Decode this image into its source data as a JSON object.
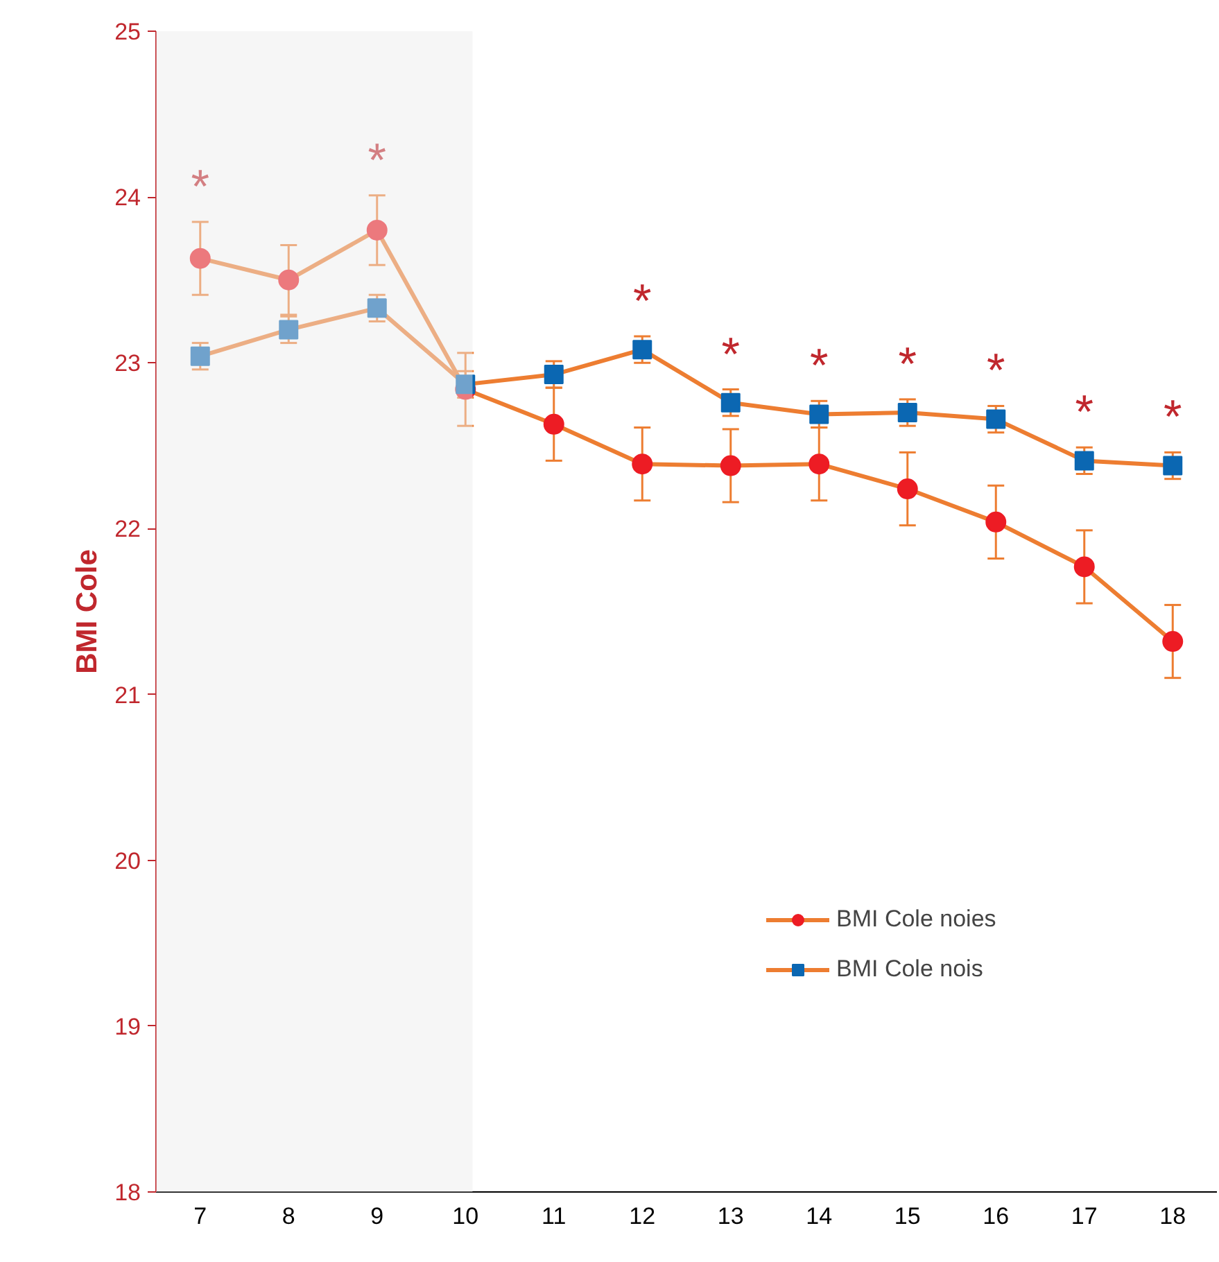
{
  "chart_data": {
    "type": "line",
    "ylabel": "BMI Cole",
    "categories": [
      "7",
      "8",
      "9",
      "10",
      "11",
      "12",
      "13",
      "14",
      "15",
      "16",
      "17",
      "18"
    ],
    "ylim": [
      18,
      25
    ],
    "yticks": [
      18,
      19,
      20,
      21,
      22,
      23,
      24,
      25
    ],
    "grid": false,
    "legend": "bottom right",
    "line_style": "solid",
    "series": [
      {
        "name": "BMI Cole noies",
        "color": "#ed7d31",
        "marker": "circle",
        "colors": [
          "#ed1c24",
          "#ed1c24",
          "#ed1c24",
          "#ed1c24",
          "#ed1c24",
          "#ed1c24",
          "#ed1c24",
          "#ed1c24",
          "#ed1c24",
          "#ed1c24",
          "#ed1c24",
          "#ed1c24"
        ],
        "values": [
          23.63,
          23.5,
          23.8,
          22.84,
          22.63,
          22.39,
          22.38,
          22.39,
          22.24,
          22.04,
          21.77,
          21.32
        ],
        "value_labels": [
          "*",
          null,
          "*",
          null,
          null,
          null,
          null,
          null,
          null,
          null,
          null,
          null
        ],
        "errors": [
          0.22,
          0.21,
          0.21,
          0.22,
          0.22,
          0.22,
          0.22,
          0.22,
          0.22,
          0.22,
          0.22,
          0.22
        ]
      },
      {
        "name": "BMI Cole nois",
        "color": "#ed7d31",
        "marker": "square",
        "colors": [
          "#0b67b2",
          "#0b67b2",
          "#0b67b2",
          "#0b67b2",
          "#0b67b2",
          "#0b67b2",
          "#0b67b2",
          "#0b67b2",
          "#0b67b2",
          "#0b67b2",
          "#0b67b2",
          "#0b67b2"
        ],
        "values": [
          23.04,
          23.2,
          23.33,
          22.87,
          22.93,
          23.08,
          22.76,
          22.69,
          22.7,
          22.66,
          22.41,
          22.38
        ],
        "value_labels": [
          null,
          null,
          null,
          null,
          null,
          "*",
          "*",
          "*",
          "*",
          "*",
          "*",
          "*"
        ],
        "errors": [
          0.08,
          0.08,
          0.08,
          0.08,
          0.08,
          0.08,
          0.08,
          0.08,
          0.08,
          0.08,
          0.08,
          0.08
        ]
      }
    ],
    "bands": [
      {
        "axis": "x",
        "from": "7",
        "to": "10",
        "color": "#ebebeb"
      }
    ]
  }
}
